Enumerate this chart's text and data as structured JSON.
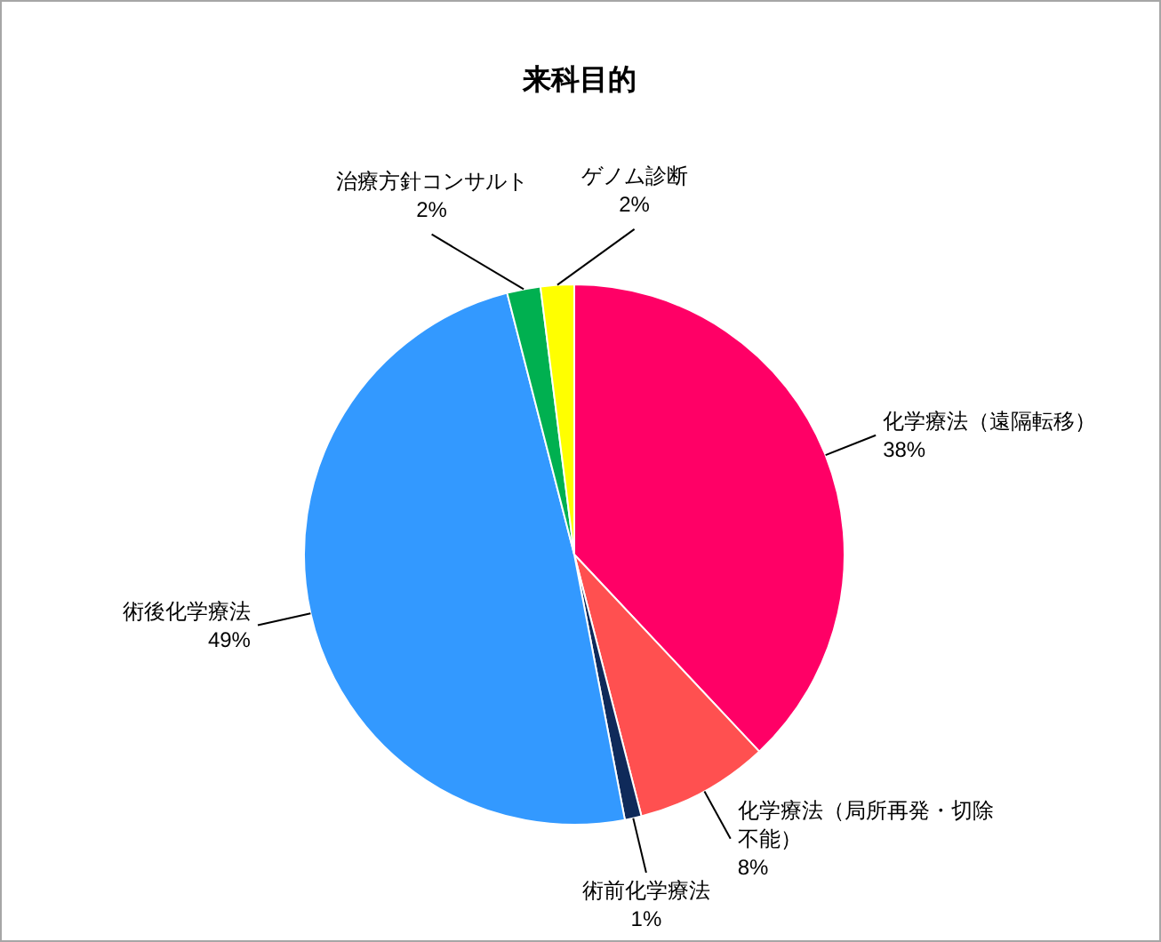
{
  "chart_data": {
    "type": "pie",
    "title": "来科目的",
    "categories": [
      "化学療法（遠隔転移）",
      "化学療法（局所再発・切除不能）",
      "術前化学療法",
      "術後化学療法",
      "治療方針コンサルト",
      "ゲノム診断"
    ],
    "values": [
      38,
      8,
      1,
      49,
      2,
      2
    ],
    "colors": [
      "#ff0066",
      "#ff5050",
      "#0f2a5a",
      "#3399ff",
      "#00b050",
      "#ffff00"
    ],
    "value_labels": [
      "38%",
      "8%",
      "1%",
      "49%",
      "2%",
      "2%"
    ]
  }
}
